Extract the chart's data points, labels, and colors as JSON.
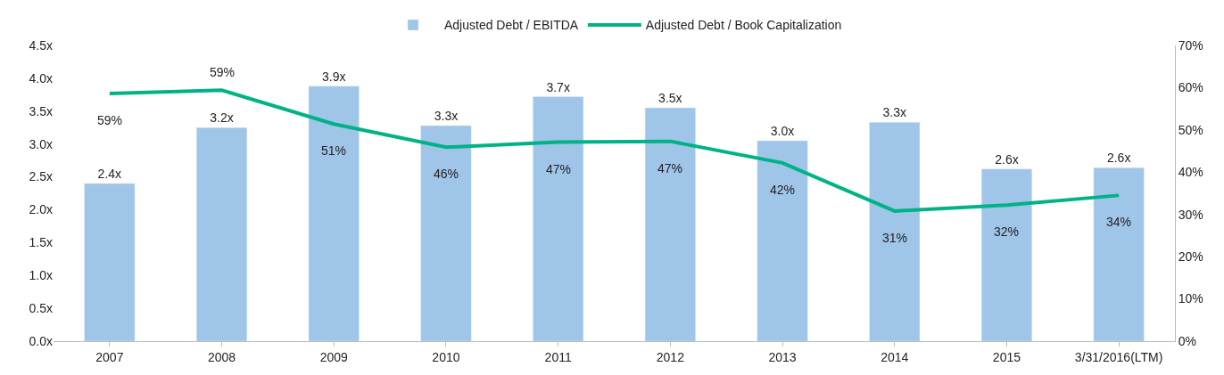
{
  "chart_data": {
    "type": "bar",
    "categories": [
      "2007",
      "2008",
      "2009",
      "2010",
      "2011",
      "2012",
      "2013",
      "2014",
      "2015",
      "3/31/2016(LTM)"
    ],
    "series": [
      {
        "name": "Adjusted Debt / EBITDA",
        "color": "#9fc5e8",
        "values": [
          2.4,
          3.25,
          3.88,
          3.28,
          3.72,
          3.55,
          3.05,
          3.33,
          2.62,
          2.64
        ],
        "value_labels": [
          "2.4x",
          "3.2x",
          "3.9x",
          "3.3x",
          "3.7x",
          "3.5x",
          "3.0x",
          "3.3x",
          "2.6x",
          "2.6x"
        ]
      },
      {
        "name": "Adjusted Debt / Book Capitalization",
        "type": "line",
        "axis": "y2",
        "color": "#00b386",
        "values": [
          58.6,
          59.4,
          51.4,
          45.9,
          47.1,
          47.3,
          42.2,
          30.8,
          32.2,
          34.5
        ],
        "value_labels": [
          "59%",
          "59%",
          "51%",
          "46%",
          "47%",
          "47%",
          "42%",
          "31%",
          "32%",
          "34%"
        ]
      }
    ],
    "ylim": [
      0,
      4.5
    ],
    "yticks": [
      {
        "value": 0,
        "label": "0.0x"
      },
      {
        "value": 0.5,
        "label": "0.5x"
      },
      {
        "value": 1,
        "label": "1.0x"
      },
      {
        "value": 1.5,
        "label": "1.5x"
      },
      {
        "value": 2,
        "label": "2.0x"
      },
      {
        "value": 2.5,
        "label": "2.5x"
      },
      {
        "value": 3,
        "label": "3.0x"
      },
      {
        "value": 3.5,
        "label": "3.5x"
      },
      {
        "value": 4,
        "label": "4.0x"
      },
      {
        "value": 4.5,
        "label": "4.5x"
      }
    ],
    "y2lim": [
      0,
      70
    ],
    "y2ticks": [
      {
        "value": 0,
        "label": "0%"
      },
      {
        "value": 10,
        "label": "10%"
      },
      {
        "value": 20,
        "label": "20%"
      },
      {
        "value": 30,
        "label": "30%"
      },
      {
        "value": 40,
        "label": "40%"
      },
      {
        "value": 50,
        "label": "50%"
      },
      {
        "value": 60,
        "label": "60%"
      },
      {
        "value": 70,
        "label": "70%"
      }
    ],
    "legend": "top",
    "marker": "none",
    "line_style": "solid"
  }
}
